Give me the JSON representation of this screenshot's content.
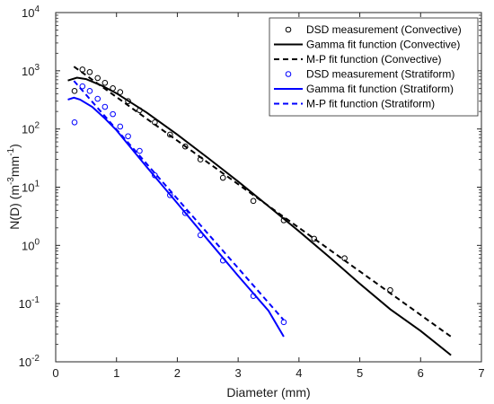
{
  "chart_data": {
    "type": "line",
    "xlabel": "Diameter (mm)",
    "ylabel": {
      "base": "N(D) (m",
      "exp1": "-3",
      "mid": "mm",
      "exp2": "-1",
      "end": ")"
    },
    "xlim": [
      0,
      7
    ],
    "ylim": [
      0.01,
      10000
    ],
    "yscale": "log",
    "x_ticks": [
      "0",
      "1",
      "2",
      "3",
      "4",
      "5",
      "6",
      "7"
    ],
    "y_ticks": [
      {
        "base": "10",
        "exp": "-2"
      },
      {
        "base": "10",
        "exp": "-1"
      },
      {
        "base": "10",
        "exp": "0"
      },
      {
        "base": "10",
        "exp": "1"
      },
      {
        "base": "10",
        "exp": "2"
      },
      {
        "base": "10",
        "exp": "3"
      },
      {
        "base": "10",
        "exp": "4"
      }
    ],
    "legend_position": "top-right",
    "series": [
      {
        "name": "DSD measurement (Convective)",
        "kind": "markers",
        "color": "#000000",
        "points": [
          [
            0.31,
            450
          ],
          [
            0.44,
            1050
          ],
          [
            0.56,
            950
          ],
          [
            0.69,
            750
          ],
          [
            0.81,
            620
          ],
          [
            0.94,
            500
          ],
          [
            1.06,
            430
          ],
          [
            1.19,
            300
          ],
          [
            1.38,
            210
          ],
          [
            1.63,
            130
          ],
          [
            1.88,
            80
          ],
          [
            2.13,
            50
          ],
          [
            2.38,
            30
          ],
          [
            2.75,
            14.5
          ],
          [
            3.25,
            5.8
          ],
          [
            3.75,
            2.7
          ],
          [
            4.25,
            1.3
          ],
          [
            4.75,
            0.6
          ],
          [
            5.5,
            0.17
          ]
        ]
      },
      {
        "name": "Gamma fit function (Convective)",
        "kind": "line",
        "dash": "solid",
        "color": "#000000",
        "points": [
          [
            0.2,
            680
          ],
          [
            0.35,
            760
          ],
          [
            0.5,
            720
          ],
          [
            0.75,
            560
          ],
          [
            1.0,
            410
          ],
          [
            1.5,
            190
          ],
          [
            2.0,
            80
          ],
          [
            2.5,
            32
          ],
          [
            3.0,
            12.5
          ],
          [
            3.5,
            4.7
          ],
          [
            4.0,
            1.75
          ],
          [
            4.5,
            0.63
          ],
          [
            5.0,
            0.22
          ],
          [
            5.5,
            0.08
          ],
          [
            6.0,
            0.034
          ],
          [
            6.5,
            0.013
          ]
        ]
      },
      {
        "name": "M-P fit function (Convective)",
        "kind": "line",
        "dash": "dashed",
        "color": "#000000",
        "points": [
          [
            0.3,
            1180
          ],
          [
            6.5,
            0.027
          ]
        ]
      },
      {
        "name": "DSD measurement (Stratiform)",
        "kind": "markers",
        "color": "#0000ff",
        "points": [
          [
            0.31,
            130
          ],
          [
            0.44,
            540
          ],
          [
            0.56,
            450
          ],
          [
            0.69,
            330
          ],
          [
            0.81,
            240
          ],
          [
            0.94,
            180
          ],
          [
            1.06,
            110
          ],
          [
            1.19,
            75
          ],
          [
            1.38,
            42
          ],
          [
            1.63,
            16
          ],
          [
            1.88,
            7.3
          ],
          [
            2.13,
            3.6
          ],
          [
            2.38,
            1.5
          ],
          [
            2.75,
            0.55
          ],
          [
            3.25,
            0.135
          ],
          [
            3.75,
            0.048
          ]
        ]
      },
      {
        "name": "Gamma fit function (Stratiform)",
        "kind": "line",
        "dash": "solid",
        "color": "#0000ff",
        "points": [
          [
            0.2,
            320
          ],
          [
            0.3,
            345
          ],
          [
            0.4,
            320
          ],
          [
            0.6,
            240
          ],
          [
            0.8,
            155
          ],
          [
            1.0,
            95
          ],
          [
            1.5,
            22
          ],
          [
            2.0,
            5.3
          ],
          [
            2.5,
            1.25
          ],
          [
            3.0,
            0.3
          ],
          [
            3.5,
            0.075
          ],
          [
            3.75,
            0.027
          ]
        ]
      },
      {
        "name": "M-P fit function (Stratiform)",
        "kind": "line",
        "dash": "dashed",
        "color": "#0000ff",
        "points": [
          [
            0.3,
            670
          ],
          [
            3.75,
            0.052
          ]
        ]
      }
    ]
  }
}
